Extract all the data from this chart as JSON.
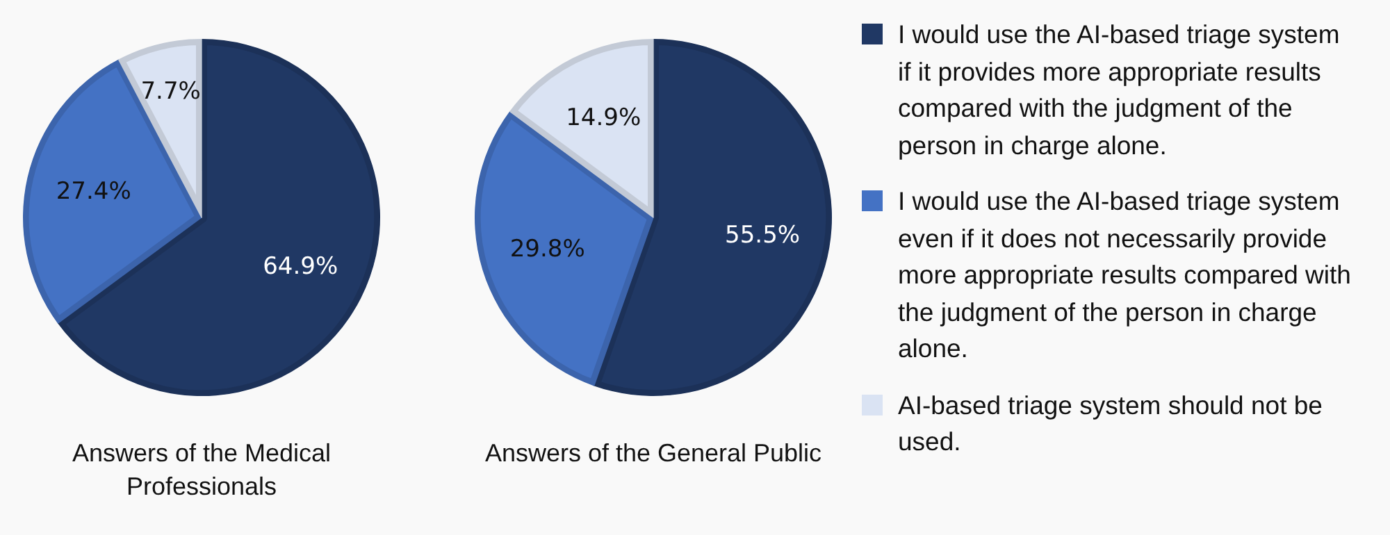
{
  "chart_data": [
    {
      "type": "pie",
      "title": "Answers of the Medical Professionals",
      "categories": [
        null,
        null,
        null
      ],
      "values": [
        64.9,
        27.4,
        7.7
      ],
      "value_labels": [
        "64.9%",
        "27.4%",
        "7.7%"
      ],
      "colors": [
        "#203864",
        "#4472c4",
        "#dae3f3"
      ]
    },
    {
      "type": "pie",
      "title": "Answers of the General Public",
      "categories": [
        "I would use the AI-based triage system if it provides more appropriate results compared with the judgment of the person in charge alone.",
        "I would use the AI-based triage system even if it does not necessarily provide more appropriate results  compared with the judgment of the person in charge alone.",
        "AI-based triage system should not be used."
      ],
      "values": [
        55.5,
        29.8,
        14.9
      ],
      "value_labels": [
        "55.5%",
        "29.8%",
        "14.9%"
      ],
      "colors": [
        "#203864",
        "#4472c4",
        "#dae3f3"
      ],
      "legend": "right"
    }
  ]
}
